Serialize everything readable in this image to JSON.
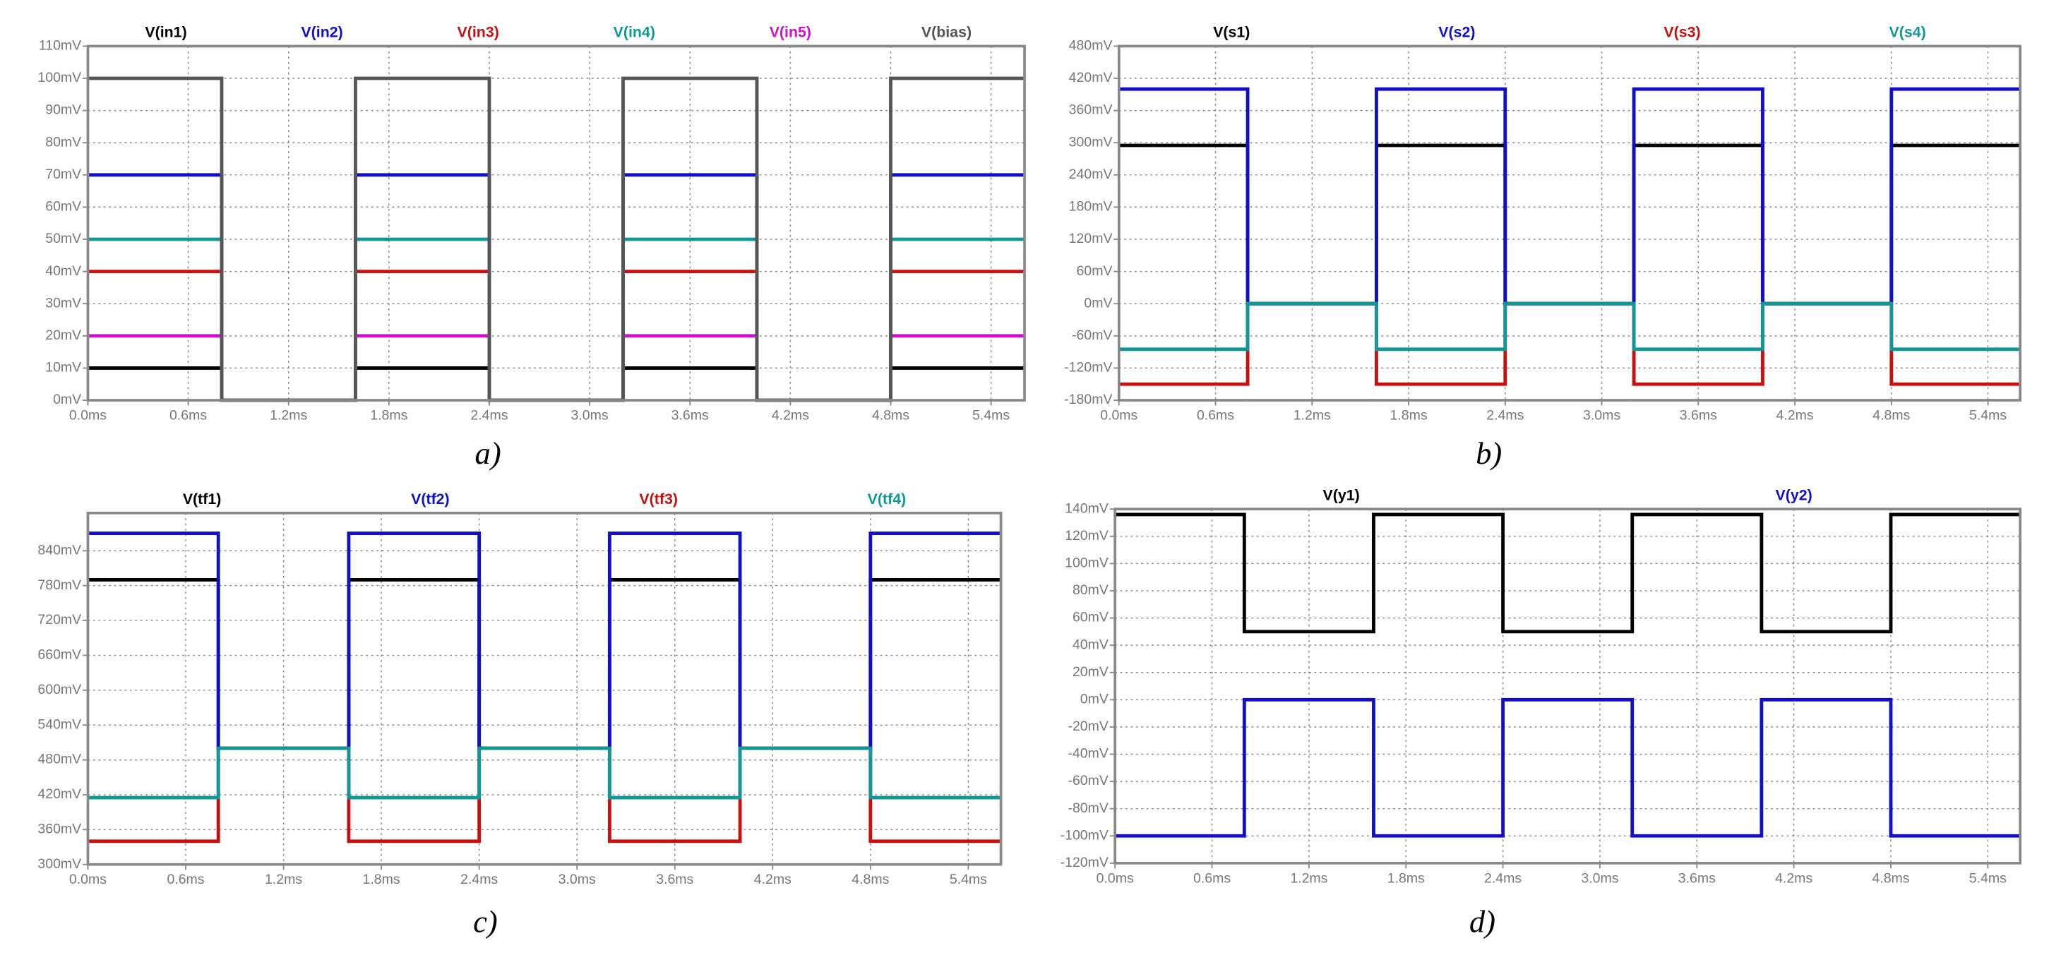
{
  "chart_data": [
    {
      "type": "line",
      "caption": "a)",
      "x": [
        0,
        0.8,
        0.8,
        1.6,
        1.6,
        2.4,
        2.4,
        3.2,
        3.2,
        4.0,
        4.0,
        4.8,
        4.8,
        5.6
      ],
      "xlim": [
        0,
        5.6
      ],
      "xticks": [
        {
          "value": 0,
          "label": "0.0ms"
        },
        {
          "value": 0.6,
          "label": "0.6ms"
        },
        {
          "value": 1.2,
          "label": "1.2ms"
        },
        {
          "value": 1.8,
          "label": "1.8ms"
        },
        {
          "value": 2.4,
          "label": "2.4ms"
        },
        {
          "value": 3.0,
          "label": "3.0ms"
        },
        {
          "value": 3.6,
          "label": "3.6ms"
        },
        {
          "value": 4.2,
          "label": "4.2ms"
        },
        {
          "value": 4.8,
          "label": "4.8ms"
        },
        {
          "value": 5.4,
          "label": "5.4ms"
        }
      ],
      "ylim": [
        0,
        110
      ],
      "yticks": [
        {
          "value": 0,
          "label": "0mV"
        },
        {
          "value": 10,
          "label": "10mV"
        },
        {
          "value": 20,
          "label": "20mV"
        },
        {
          "value": 30,
          "label": "30mV"
        },
        {
          "value": 40,
          "label": "40mV"
        },
        {
          "value": 50,
          "label": "50mV"
        },
        {
          "value": 60,
          "label": "60mV"
        },
        {
          "value": 70,
          "label": "70mV"
        },
        {
          "value": 80,
          "label": "80mV"
        },
        {
          "value": 90,
          "label": "90mV"
        },
        {
          "value": 100,
          "label": "100mV"
        },
        {
          "value": 110,
          "label": "110mV"
        }
      ],
      "grid": true,
      "series": [
        {
          "name": "V(in1)",
          "color": "#000000",
          "values": [
            10,
            10,
            0,
            0,
            10,
            10,
            0,
            0,
            10,
            10,
            0,
            0,
            10,
            10
          ]
        },
        {
          "name": "V(in2)",
          "color": "#1010c8",
          "values": [
            70,
            70,
            0,
            0,
            70,
            70,
            0,
            0,
            70,
            70,
            0,
            0,
            70,
            70
          ]
        },
        {
          "name": "V(in3)",
          "color": "#c81010",
          "values": [
            40,
            40,
            0,
            0,
            40,
            40,
            0,
            0,
            40,
            40,
            0,
            0,
            40,
            40
          ]
        },
        {
          "name": "V(in4)",
          "color": "#109898",
          "values": [
            50,
            50,
            0,
            0,
            50,
            50,
            0,
            0,
            50,
            50,
            0,
            0,
            50,
            50
          ]
        },
        {
          "name": "V(in5)",
          "color": "#d010d0",
          "values": [
            20,
            20,
            0,
            0,
            20,
            20,
            0,
            0,
            20,
            20,
            0,
            0,
            20,
            20
          ]
        },
        {
          "name": "V(bias)",
          "color": "#555555",
          "values": [
            100,
            100,
            0,
            0,
            100,
            100,
            0,
            0,
            100,
            100,
            0,
            0,
            100,
            100
          ]
        }
      ]
    },
    {
      "type": "line",
      "caption": "b)",
      "x": [
        0,
        0.8,
        0.8,
        1.6,
        1.6,
        2.4,
        2.4,
        3.2,
        3.2,
        4.0,
        4.0,
        4.8,
        4.8,
        5.6
      ],
      "xlim": [
        0,
        5.6
      ],
      "xticks": [
        {
          "value": 0,
          "label": "0.0ms"
        },
        {
          "value": 0.6,
          "label": "0.6ms"
        },
        {
          "value": 1.2,
          "label": "1.2ms"
        },
        {
          "value": 1.8,
          "label": "1.8ms"
        },
        {
          "value": 2.4,
          "label": "2.4ms"
        },
        {
          "value": 3.0,
          "label": "3.0ms"
        },
        {
          "value": 3.6,
          "label": "3.6ms"
        },
        {
          "value": 4.2,
          "label": "4.2ms"
        },
        {
          "value": 4.8,
          "label": "4.8ms"
        },
        {
          "value": 5.4,
          "label": "5.4ms"
        }
      ],
      "ylim": [
        -180,
        480
      ],
      "yticks": [
        {
          "value": -180,
          "label": "-180mV"
        },
        {
          "value": -120,
          "label": "-120mV"
        },
        {
          "value": -60,
          "label": "-60mV"
        },
        {
          "value": 0,
          "label": "0mV"
        },
        {
          "value": 60,
          "label": "60mV"
        },
        {
          "value": 120,
          "label": "120mV"
        },
        {
          "value": 180,
          "label": "180mV"
        },
        {
          "value": 240,
          "label": "240mV"
        },
        {
          "value": 300,
          "label": "300mV"
        },
        {
          "value": 360,
          "label": "360mV"
        },
        {
          "value": 420,
          "label": "420mV"
        },
        {
          "value": 480,
          "label": "480mV"
        }
      ],
      "grid": true,
      "series": [
        {
          "name": "V(s1)",
          "color": "#000000",
          "values": [
            295,
            295,
            0,
            0,
            295,
            295,
            0,
            0,
            295,
            295,
            0,
            0,
            295,
            295
          ]
        },
        {
          "name": "V(s2)",
          "color": "#1010c8",
          "values": [
            400,
            400,
            0,
            0,
            400,
            400,
            0,
            0,
            400,
            400,
            0,
            0,
            400,
            400
          ]
        },
        {
          "name": "V(s3)",
          "color": "#c81010",
          "values": [
            -150,
            -150,
            0,
            0,
            -150,
            -150,
            0,
            0,
            -150,
            -150,
            0,
            0,
            -150,
            -150
          ]
        },
        {
          "name": "V(s4)",
          "color": "#109898",
          "values": [
            -85,
            -85,
            0,
            0,
            -85,
            -85,
            0,
            0,
            -85,
            -85,
            0,
            0,
            -85,
            -85
          ]
        }
      ]
    },
    {
      "type": "line",
      "caption": "c)",
      "x": [
        0,
        0.8,
        0.8,
        1.6,
        1.6,
        2.4,
        2.4,
        3.2,
        3.2,
        4.0,
        4.0,
        4.8,
        4.8,
        5.6
      ],
      "xlim": [
        0,
        5.6
      ],
      "xticks": [
        {
          "value": 0,
          "label": "0.0ms"
        },
        {
          "value": 0.6,
          "label": "0.6ms"
        },
        {
          "value": 1.2,
          "label": "1.2ms"
        },
        {
          "value": 1.8,
          "label": "1.8ms"
        },
        {
          "value": 2.4,
          "label": "2.4ms"
        },
        {
          "value": 3.0,
          "label": "3.0ms"
        },
        {
          "value": 3.6,
          "label": "3.6ms"
        },
        {
          "value": 4.2,
          "label": "4.2ms"
        },
        {
          "value": 4.8,
          "label": "4.8ms"
        },
        {
          "value": 5.4,
          "label": "5.4ms"
        }
      ],
      "ylim": [
        300,
        905
      ],
      "yticks": [
        {
          "value": 300,
          "label": "300mV"
        },
        {
          "value": 360,
          "label": "360mV"
        },
        {
          "value": 420,
          "label": "420mV"
        },
        {
          "value": 480,
          "label": "480mV"
        },
        {
          "value": 540,
          "label": "540mV"
        },
        {
          "value": 600,
          "label": "600mV"
        },
        {
          "value": 660,
          "label": "660mV"
        },
        {
          "value": 720,
          "label": "720mV"
        },
        {
          "value": 780,
          "label": "780mV"
        },
        {
          "value": 840,
          "label": "840mV"
        }
      ],
      "grid": true,
      "series": [
        {
          "name": "V(tf1)",
          "color": "#000000",
          "values": [
            790,
            790,
            500,
            500,
            790,
            790,
            500,
            500,
            790,
            790,
            500,
            500,
            790,
            790
          ]
        },
        {
          "name": "V(tf2)",
          "color": "#1010c8",
          "values": [
            870,
            870,
            500,
            500,
            870,
            870,
            500,
            500,
            870,
            870,
            500,
            500,
            870,
            870
          ]
        },
        {
          "name": "V(tf3)",
          "color": "#c81010",
          "values": [
            340,
            340,
            500,
            500,
            340,
            340,
            500,
            500,
            340,
            340,
            500,
            500,
            340,
            340
          ]
        },
        {
          "name": "V(tf4)",
          "color": "#109898",
          "values": [
            415,
            415,
            500,
            500,
            415,
            415,
            500,
            500,
            415,
            415,
            500,
            500,
            415,
            415
          ]
        }
      ]
    },
    {
      "type": "line",
      "caption": "d)",
      "x": [
        0,
        0.8,
        0.8,
        1.6,
        1.6,
        2.4,
        2.4,
        3.2,
        3.2,
        4.0,
        4.0,
        4.8,
        4.8,
        5.6
      ],
      "xlim": [
        0,
        5.6
      ],
      "xticks": [
        {
          "value": 0,
          "label": "0.0ms"
        },
        {
          "value": 0.6,
          "label": "0.6ms"
        },
        {
          "value": 1.2,
          "label": "1.2ms"
        },
        {
          "value": 1.8,
          "label": "1.8ms"
        },
        {
          "value": 2.4,
          "label": "2.4ms"
        },
        {
          "value": 3.0,
          "label": "3.0ms"
        },
        {
          "value": 3.6,
          "label": "3.6ms"
        },
        {
          "value": 4.2,
          "label": "4.2ms"
        },
        {
          "value": 4.8,
          "label": "4.8ms"
        },
        {
          "value": 5.4,
          "label": "5.4ms"
        }
      ],
      "ylim": [
        -120,
        140
      ],
      "yticks": [
        {
          "value": -120,
          "label": "-120mV"
        },
        {
          "value": -100,
          "label": "-100mV"
        },
        {
          "value": -80,
          "label": "-80mV"
        },
        {
          "value": -60,
          "label": "-60mV"
        },
        {
          "value": -40,
          "label": "-40mV"
        },
        {
          "value": -20,
          "label": "-20mV"
        },
        {
          "value": 0,
          "label": "0mV"
        },
        {
          "value": 20,
          "label": "20mV"
        },
        {
          "value": 40,
          "label": "40mV"
        },
        {
          "value": 60,
          "label": "60mV"
        },
        {
          "value": 80,
          "label": "80mV"
        },
        {
          "value": 100,
          "label": "100mV"
        },
        {
          "value": 120,
          "label": "120mV"
        },
        {
          "value": 140,
          "label": "140mV"
        }
      ],
      "grid": true,
      "series": [
        {
          "name": "V(y1)",
          "color": "#000000",
          "values": [
            136,
            136,
            50,
            50,
            136,
            136,
            50,
            50,
            136,
            136,
            50,
            50,
            136,
            136
          ]
        },
        {
          "name": "V(y2)",
          "color": "#1010c8",
          "values": [
            -100,
            -100,
            0,
            0,
            -100,
            -100,
            0,
            0,
            -100,
            -100,
            0,
            0,
            -100,
            -100
          ]
        }
      ]
    }
  ]
}
